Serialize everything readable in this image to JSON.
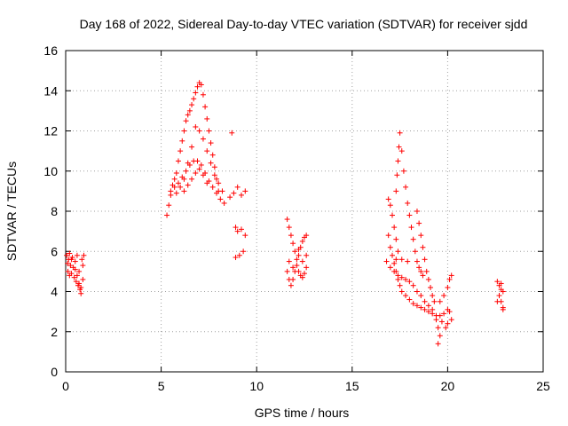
{
  "chart_data": {
    "type": "scatter",
    "title": "Day 168 of 2022, Sidereal Day-to-day VTEC variation (SDTVAR) for receiver sjdd",
    "xlabel": "GPS time / hours",
    "ylabel": "SDTVAR / TECUs",
    "xlim": [
      0,
      25
    ],
    "ylim": [
      0,
      16
    ],
    "xticks": [
      "0",
      "5",
      "10",
      "15",
      "20",
      "25"
    ],
    "yticks": [
      "0",
      "2",
      "4",
      "6",
      "8",
      "10",
      "12",
      "14",
      "16"
    ],
    "grid": true,
    "marker": "plus",
    "color": "#ff0000",
    "series": [
      {
        "name": "sjdd",
        "points": [
          [
            0.05,
            5.8
          ],
          [
            0.1,
            5.4
          ],
          [
            0.12,
            5.0
          ],
          [
            0.15,
            5.6
          ],
          [
            0.2,
            5.9
          ],
          [
            0.25,
            5.3
          ],
          [
            0.3,
            4.9
          ],
          [
            0.35,
            5.7
          ],
          [
            0.4,
            5.2
          ],
          [
            0.45,
            4.7
          ],
          [
            0.5,
            5.5
          ],
          [
            0.55,
            4.5
          ],
          [
            0.6,
            5.8
          ],
          [
            0.65,
            4.3
          ],
          [
            0.7,
            5.0
          ],
          [
            0.75,
            4.1
          ],
          [
            0.8,
            3.9
          ],
          [
            0.85,
            5.6
          ],
          [
            0.9,
            4.6
          ],
          [
            0.95,
            5.8
          ],
          [
            0.5,
            5.1
          ],
          [
            0.6,
            4.8
          ],
          [
            0.7,
            4.4
          ],
          [
            0.8,
            4.2
          ],
          [
            0.3,
            5.6
          ],
          [
            0.2,
            4.8
          ],
          [
            0.9,
            5.3
          ],
          [
            5.3,
            7.8
          ],
          [
            5.4,
            8.3
          ],
          [
            5.5,
            8.8
          ],
          [
            5.6,
            9.3
          ],
          [
            5.7,
            9.6
          ],
          [
            5.8,
            9.9
          ],
          [
            5.9,
            10.5
          ],
          [
            6.0,
            11.0
          ],
          [
            6.1,
            11.5
          ],
          [
            6.2,
            12.0
          ],
          [
            6.3,
            12.5
          ],
          [
            6.4,
            12.8
          ],
          [
            6.5,
            13.0
          ],
          [
            6.6,
            13.3
          ],
          [
            6.7,
            13.6
          ],
          [
            6.8,
            13.9
          ],
          [
            6.9,
            14.2
          ],
          [
            7.0,
            14.4
          ],
          [
            7.1,
            14.3
          ],
          [
            7.2,
            13.8
          ],
          [
            7.3,
            13.2
          ],
          [
            7.4,
            12.6
          ],
          [
            7.5,
            12.0
          ],
          [
            7.6,
            11.4
          ],
          [
            7.7,
            10.8
          ],
          [
            7.8,
            10.2
          ],
          [
            7.9,
            9.6
          ],
          [
            8.0,
            9.0
          ],
          [
            5.5,
            9.0
          ],
          [
            5.7,
            9.2
          ],
          [
            5.9,
            9.4
          ],
          [
            6.1,
            9.7
          ],
          [
            6.3,
            10.0
          ],
          [
            6.5,
            10.3
          ],
          [
            6.7,
            10.5
          ],
          [
            6.9,
            10.5
          ],
          [
            7.1,
            10.3
          ],
          [
            7.3,
            9.9
          ],
          [
            7.5,
            9.5
          ],
          [
            7.7,
            9.2
          ],
          [
            7.9,
            8.9
          ],
          [
            8.1,
            8.6
          ],
          [
            5.8,
            8.9
          ],
          [
            6.0,
            9.2
          ],
          [
            6.2,
            9.6
          ],
          [
            6.4,
            10.4
          ],
          [
            6.6,
            11.2
          ],
          [
            6.8,
            12.2
          ],
          [
            7.0,
            12.0
          ],
          [
            7.2,
            11.6
          ],
          [
            7.4,
            11.0
          ],
          [
            7.6,
            10.4
          ],
          [
            7.8,
            9.8
          ],
          [
            8.0,
            9.4
          ],
          [
            8.2,
            9.0
          ],
          [
            8.3,
            8.4
          ],
          [
            6.2,
            9.0
          ],
          [
            6.4,
            9.3
          ],
          [
            6.6,
            9.6
          ],
          [
            6.8,
            9.9
          ],
          [
            7.0,
            10.1
          ],
          [
            7.2,
            9.8
          ],
          [
            7.4,
            9.4
          ],
          [
            8.7,
            11.9
          ],
          [
            8.6,
            8.7
          ],
          [
            8.8,
            8.9
          ],
          [
            9.0,
            9.2
          ],
          [
            9.2,
            8.8
          ],
          [
            9.4,
            9.0
          ],
          [
            8.9,
            7.2
          ],
          [
            9.0,
            7.0
          ],
          [
            9.2,
            7.1
          ],
          [
            9.4,
            6.8
          ],
          [
            8.9,
            5.7
          ],
          [
            9.1,
            5.8
          ],
          [
            9.3,
            6.0
          ],
          [
            11.6,
            7.6
          ],
          [
            11.7,
            7.2
          ],
          [
            11.8,
            6.8
          ],
          [
            11.9,
            6.4
          ],
          [
            12.0,
            6.0
          ],
          [
            12.1,
            5.6
          ],
          [
            12.2,
            5.8
          ],
          [
            12.3,
            6.2
          ],
          [
            12.4,
            6.5
          ],
          [
            12.5,
            6.7
          ],
          [
            12.6,
            6.8
          ],
          [
            11.6,
            5.0
          ],
          [
            11.7,
            4.6
          ],
          [
            11.8,
            4.3
          ],
          [
            11.9,
            4.6
          ],
          [
            12.0,
            5.0
          ],
          [
            12.1,
            5.3
          ],
          [
            12.2,
            5.0
          ],
          [
            12.3,
            4.8
          ],
          [
            12.4,
            4.7
          ],
          [
            12.5,
            4.9
          ],
          [
            12.6,
            5.2
          ],
          [
            11.7,
            5.5
          ],
          [
            11.9,
            5.2
          ],
          [
            12.2,
            6.1
          ],
          [
            12.4,
            5.5
          ],
          [
            12.6,
            5.8
          ],
          [
            16.9,
            8.6
          ],
          [
            17.0,
            8.3
          ],
          [
            17.1,
            7.8
          ],
          [
            17.2,
            7.2
          ],
          [
            17.3,
            6.6
          ],
          [
            17.4,
            6.0
          ],
          [
            17.5,
            11.9
          ],
          [
            17.45,
            11.2
          ],
          [
            17.4,
            10.5
          ],
          [
            17.35,
            9.8
          ],
          [
            17.3,
            9.0
          ],
          [
            17.6,
            11.0
          ],
          [
            17.7,
            10.0
          ],
          [
            17.8,
            9.2
          ],
          [
            17.9,
            8.4
          ],
          [
            18.0,
            7.8
          ],
          [
            18.1,
            7.2
          ],
          [
            18.2,
            6.6
          ],
          [
            18.3,
            6.0
          ],
          [
            18.4,
            5.5
          ],
          [
            18.5,
            5.2
          ],
          [
            18.6,
            5.0
          ],
          [
            18.7,
            4.8
          ],
          [
            16.9,
            6.8
          ],
          [
            17.0,
            6.2
          ],
          [
            17.1,
            5.8
          ],
          [
            17.2,
            5.4
          ],
          [
            17.3,
            5.0
          ],
          [
            17.4,
            4.6
          ],
          [
            17.5,
            4.3
          ],
          [
            17.6,
            4.0
          ],
          [
            17.8,
            3.8
          ],
          [
            18.0,
            3.6
          ],
          [
            18.2,
            3.4
          ],
          [
            18.4,
            3.3
          ],
          [
            18.6,
            3.2
          ],
          [
            18.8,
            3.1
          ],
          [
            19.0,
            3.0
          ],
          [
            19.2,
            2.9
          ],
          [
            19.4,
            2.8
          ],
          [
            19.6,
            2.8
          ],
          [
            19.8,
            2.9
          ],
          [
            20.0,
            3.1
          ],
          [
            16.8,
            5.5
          ],
          [
            17.0,
            5.2
          ],
          [
            17.2,
            5.0
          ],
          [
            17.4,
            4.8
          ],
          [
            17.6,
            4.7
          ],
          [
            17.8,
            4.6
          ],
          [
            18.0,
            4.5
          ],
          [
            18.2,
            4.3
          ],
          [
            18.4,
            4.0
          ],
          [
            18.6,
            3.8
          ],
          [
            18.8,
            3.5
          ],
          [
            19.0,
            3.3
          ],
          [
            19.2,
            3.1
          ],
          [
            19.4,
            2.6
          ],
          [
            19.5,
            2.2
          ],
          [
            19.6,
            1.8
          ],
          [
            19.5,
            1.4
          ],
          [
            18.4,
            8.0
          ],
          [
            18.5,
            7.4
          ],
          [
            18.6,
            6.8
          ],
          [
            18.7,
            6.2
          ],
          [
            18.8,
            5.6
          ],
          [
            18.9,
            5.0
          ],
          [
            19.0,
            4.6
          ],
          [
            19.1,
            4.2
          ],
          [
            19.2,
            3.8
          ],
          [
            19.3,
            3.5
          ],
          [
            19.6,
            3.5
          ],
          [
            19.8,
            3.8
          ],
          [
            20.0,
            4.2
          ],
          [
            20.1,
            4.6
          ],
          [
            20.2,
            4.8
          ],
          [
            20.1,
            3.0
          ],
          [
            20.2,
            2.6
          ],
          [
            20.0,
            2.4
          ],
          [
            19.9,
            2.2
          ],
          [
            19.7,
            2.5
          ],
          [
            17.3,
            5.6
          ],
          [
            17.6,
            5.6
          ],
          [
            17.9,
            5.5
          ],
          [
            22.6,
            4.5
          ],
          [
            22.7,
            4.3
          ],
          [
            22.8,
            4.1
          ],
          [
            22.9,
            4.0
          ],
          [
            22.7,
            3.8
          ],
          [
            22.8,
            3.5
          ],
          [
            22.9,
            3.2
          ],
          [
            22.6,
            3.5
          ],
          [
            22.8,
            4.4
          ],
          [
            22.9,
            3.1
          ]
        ]
      }
    ]
  }
}
